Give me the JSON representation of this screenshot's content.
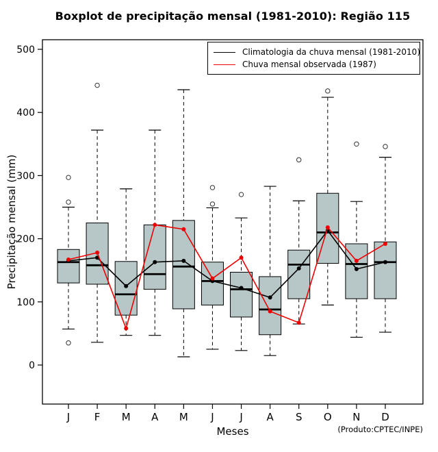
{
  "title": "Boxplot de precipitação mensal (1981-2010): Região 115",
  "axes": {
    "y_label": "Precipitação mensal (mm)",
    "x_label": "Meses",
    "y_ticks": [
      0,
      100,
      200,
      300,
      400,
      500
    ]
  },
  "footer": {
    "product_note": "(Produto:CPTEC/INPE)"
  },
  "legend": {
    "items": [
      {
        "label": "Climatologia da chuva mensal (1981-2010)",
        "color": "#000000"
      },
      {
        "label": "Chuva mensal observada (1987)",
        "color": "#ee0000"
      }
    ]
  },
  "style": {
    "box_fill": "#b7c6c6",
    "box_stroke": "#000000",
    "outlier_stroke": "#333333",
    "frame_stroke": "#000000"
  },
  "chart_data": {
    "type": "boxplot",
    "title": "Boxplot de precipitação mensal (1981-2010): Região 115",
    "xlabel": "Meses",
    "ylabel": "Precipitação mensal (mm)",
    "ylim": [
      0,
      500
    ],
    "grid": false,
    "legend_position": "top-right",
    "categories": [
      "J",
      "F",
      "M",
      "A",
      "M",
      "J",
      "J",
      "A",
      "S",
      "O",
      "N",
      "D"
    ],
    "boxes": [
      {
        "low": 57,
        "q1": 130,
        "median": 163,
        "q3": 183,
        "high": 250,
        "outliers": [
          297,
          258,
          35
        ]
      },
      {
        "low": 36,
        "q1": 128,
        "median": 158,
        "q3": 225,
        "high": 372,
        "outliers": [
          443
        ]
      },
      {
        "low": 47,
        "q1": 79,
        "median": 112,
        "q3": 164,
        "high": 279,
        "outliers": []
      },
      {
        "low": 47,
        "q1": 120,
        "median": 144,
        "q3": 222,
        "high": 372,
        "outliers": []
      },
      {
        "low": 13,
        "q1": 89,
        "median": 156,
        "q3": 229,
        "high": 436,
        "outliers": []
      },
      {
        "low": 25,
        "q1": 95,
        "median": 133,
        "q3": 163,
        "high": 249,
        "outliers": [
          255,
          281
        ]
      },
      {
        "low": 23,
        "q1": 76,
        "median": 120,
        "q3": 147,
        "high": 233,
        "outliers": [
          270
        ]
      },
      {
        "low": 15,
        "q1": 48,
        "median": 88,
        "q3": 140,
        "high": 283,
        "outliers": []
      },
      {
        "low": 65,
        "q1": 105,
        "median": 159,
        "q3": 182,
        "high": 260,
        "outliers": [
          325
        ]
      },
      {
        "low": 95,
        "q1": 161,
        "median": 210,
        "q3": 272,
        "high": 424,
        "outliers": [
          434
        ]
      },
      {
        "low": 44,
        "q1": 105,
        "median": 160,
        "q3": 192,
        "high": 259,
        "outliers": [
          350
        ]
      },
      {
        "low": 52,
        "q1": 105,
        "median": 163,
        "q3": 195,
        "high": 329,
        "outliers": [
          346
        ]
      }
    ],
    "series": [
      {
        "name": "Climatologia da chuva mensal (1981-2010)",
        "type": "line",
        "color": "#000000",
        "values": [
          165,
          170,
          125,
          163,
          165,
          133,
          122,
          107,
          153,
          213,
          152,
          163
        ]
      },
      {
        "name": "Chuva mensal observada (1987)",
        "type": "line",
        "color": "#ee0000",
        "values": [
          167,
          178,
          58,
          222,
          215,
          137,
          170,
          85,
          67,
          218,
          165,
          192
        ]
      }
    ]
  }
}
